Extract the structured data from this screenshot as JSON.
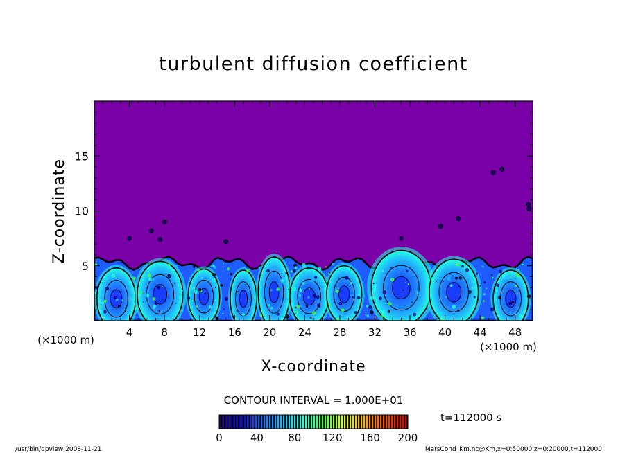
{
  "chart_data": {
    "type": "heatmap",
    "title": "turbulent diffusion coefficient",
    "xlabel": "X-coordinate",
    "ylabel": "Z-coordinate",
    "x_unit_left": "(×1000 m)",
    "x_unit_right": "(×1000 m)",
    "x_ticks": [
      4,
      8,
      12,
      16,
      20,
      24,
      28,
      32,
      36,
      40,
      44,
      48
    ],
    "y_ticks": [
      5,
      10,
      15
    ],
    "xlim": [
      0,
      50
    ],
    "ylim": [
      0,
      20
    ],
    "contour_interval_text": "CONTOUR INTERVAL = 1.000E+01",
    "colorbar": {
      "ticks": [
        0,
        40,
        80,
        120,
        160,
        200
      ],
      "range": [
        0,
        200
      ],
      "colors": [
        "#1a007a",
        "#0000d0",
        "#1f64ff",
        "#22b7ff",
        "#22ffd8",
        "#44ff44",
        "#d8ff22",
        "#ffb000",
        "#ff4a00",
        "#d80000"
      ]
    },
    "time_label": "t=112000 s",
    "background_color": "#7a00a8",
    "turbulent_layer_top_km": 5.5,
    "cells": [
      {
        "x": 2.5,
        "z": 2.0,
        "rx": 2.2,
        "rz": 2.8
      },
      {
        "x": 7.5,
        "z": 2.4,
        "rx": 2.6,
        "rz": 3.0
      },
      {
        "x": 12.5,
        "z": 2.2,
        "rx": 1.8,
        "rz": 2.5
      },
      {
        "x": 17.0,
        "z": 2.0,
        "rx": 1.5,
        "rz": 2.6
      },
      {
        "x": 20.5,
        "z": 2.6,
        "rx": 1.8,
        "rz": 3.2
      },
      {
        "x": 24.5,
        "z": 2.2,
        "rx": 2.2,
        "rz": 2.6
      },
      {
        "x": 28.5,
        "z": 2.4,
        "rx": 2.0,
        "rz": 2.6
      },
      {
        "x": 35.0,
        "z": 3.0,
        "rx": 3.4,
        "rz": 3.4
      },
      {
        "x": 41.0,
        "z": 2.6,
        "rx": 2.8,
        "rz": 3.0
      },
      {
        "x": 47.5,
        "z": 2.0,
        "rx": 2.0,
        "rz": 2.6
      }
    ]
  },
  "footer": {
    "left": "/usr/bin/gpview   2008-11-21",
    "right": "MarsCond_Km.nc@Km,x=0:50000,z=0:20000,t=112000"
  }
}
